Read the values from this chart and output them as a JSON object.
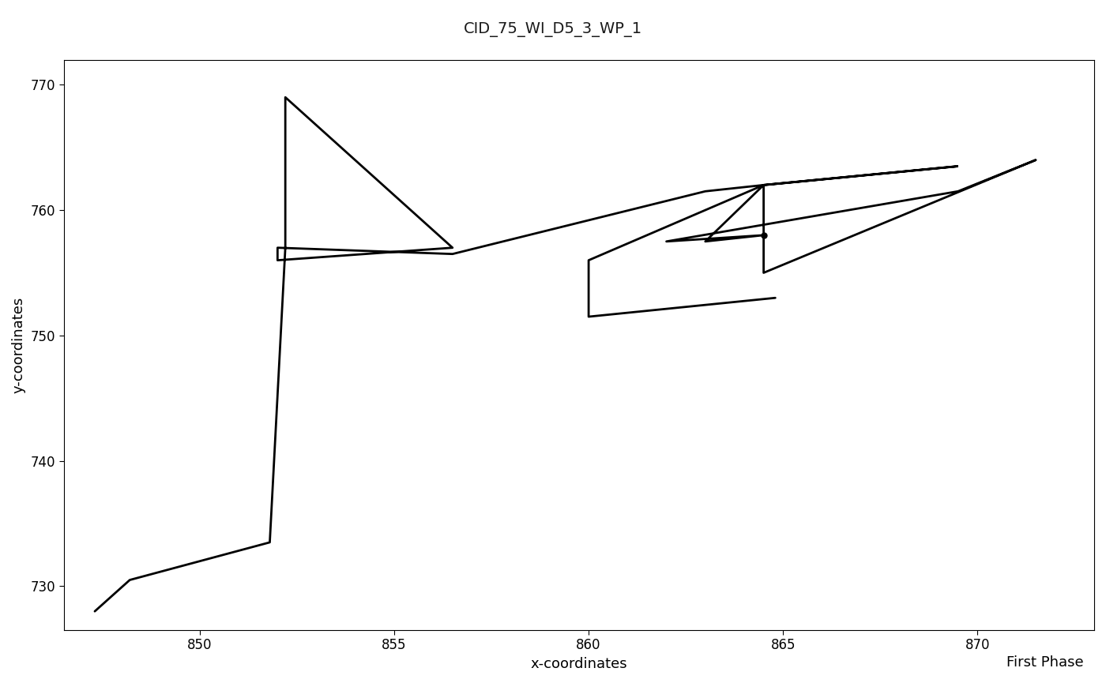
{
  "title": "CID_75_WI_D5_3_WP_1",
  "xlabel": "x-coordinates",
  "ylabel": "y-coordinates",
  "annotation": "First Phase",
  "title_bg_color": "#6b9dc2",
  "title_text_color": "#1a1a1a",
  "line_color": "black",
  "line_width": 2.0,
  "bg_color": "white",
  "xlim": [
    846.5,
    873.0
  ],
  "ylim": [
    726.5,
    772.0
  ],
  "xticks": [
    850,
    855,
    860,
    865,
    870
  ],
  "yticks": [
    730,
    740,
    750,
    760,
    770
  ],
  "track_x": [
    847.3,
    848.2,
    851.8,
    852.2,
    852.2,
    856.5,
    852.0,
    852.0,
    856.5,
    863.0,
    864.5,
    869.5,
    864.5,
    863.0,
    864.5,
    862.0,
    869.5,
    871.5,
    864.5,
    864.5,
    864.5,
    860.0,
    860.0,
    864.8
  ],
  "track_y": [
    728.0,
    730.5,
    733.5,
    757.0,
    769.0,
    757.0,
    756.0,
    757.0,
    756.5,
    761.5,
    762.0,
    763.5,
    762.0,
    757.5,
    758.0,
    757.5,
    761.5,
    764.0,
    755.0,
    758.0,
    762.0,
    756.0,
    751.5,
    753.0
  ],
  "marker_x": [
    864.5
  ],
  "marker_y": [
    758.0
  ],
  "title_fontsize": 14,
  "label_fontsize": 13,
  "tick_fontsize": 12,
  "annotation_fontsize": 13
}
